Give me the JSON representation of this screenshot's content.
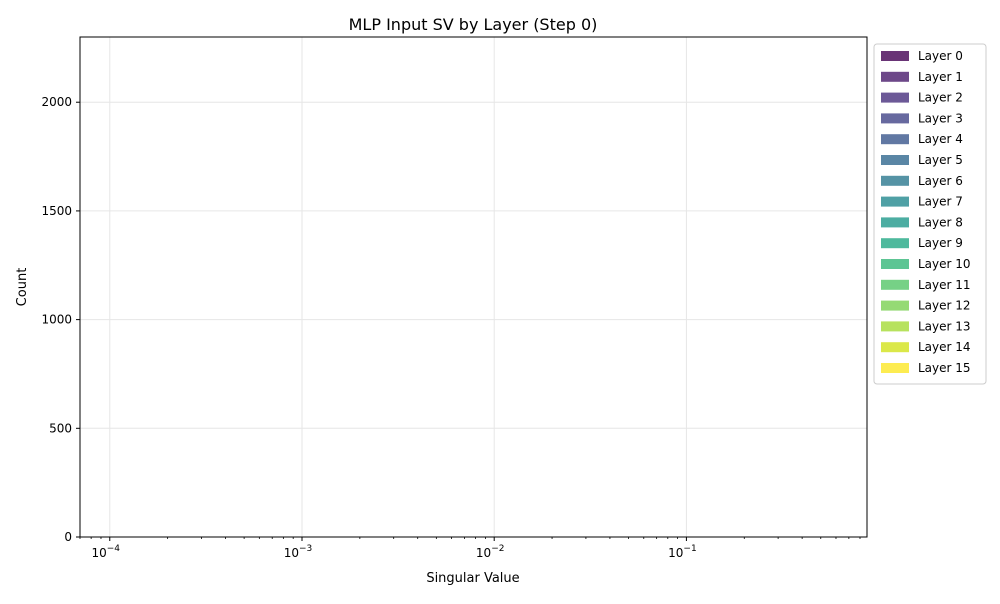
{
  "chart_data": {
    "type": "histogram",
    "title": "MLP Input SV by Layer (Step 0)",
    "xlabel": "Singular Value",
    "ylabel": "Count",
    "xscale": "log",
    "xlim": [
      7e-05,
      0.87
    ],
    "ylim": [
      0,
      2300
    ],
    "xticks": [
      {
        "value": 0.0001,
        "base": "10",
        "exp": "−4"
      },
      {
        "value": 0.001,
        "base": "10",
        "exp": "−3"
      },
      {
        "value": 0.01,
        "base": "10",
        "exp": "−2"
      },
      {
        "value": 0.1,
        "base": "10",
        "exp": "−1"
      }
    ],
    "yticks": [
      0,
      500,
      1000,
      1500,
      2000
    ],
    "grid": true,
    "legend_position": "outside-right-top",
    "series": [
      {
        "name": "Layer 0",
        "color": "#440154"
      },
      {
        "name": "Layer 1",
        "color": "#481a6c"
      },
      {
        "name": "Layer 2",
        "color": "#472f7d"
      },
      {
        "name": "Layer 3",
        "color": "#414487"
      },
      {
        "name": "Layer 4",
        "color": "#39568c"
      },
      {
        "name": "Layer 5",
        "color": "#31688e"
      },
      {
        "name": "Layer 6",
        "color": "#2a788e"
      },
      {
        "name": "Layer 7",
        "color": "#23888e"
      },
      {
        "name": "Layer 8",
        "color": "#1f988b"
      },
      {
        "name": "Layer 9",
        "color": "#22a884"
      },
      {
        "name": "Layer 10",
        "color": "#35b779"
      },
      {
        "name": "Layer 11",
        "color": "#54c568"
      },
      {
        "name": "Layer 12",
        "color": "#7ad151"
      },
      {
        "name": "Layer 13",
        "color": "#a5db36"
      },
      {
        "name": "Layer 14",
        "color": "#d2e21b"
      },
      {
        "name": "Layer 15",
        "color": "#fde725"
      }
    ]
  }
}
